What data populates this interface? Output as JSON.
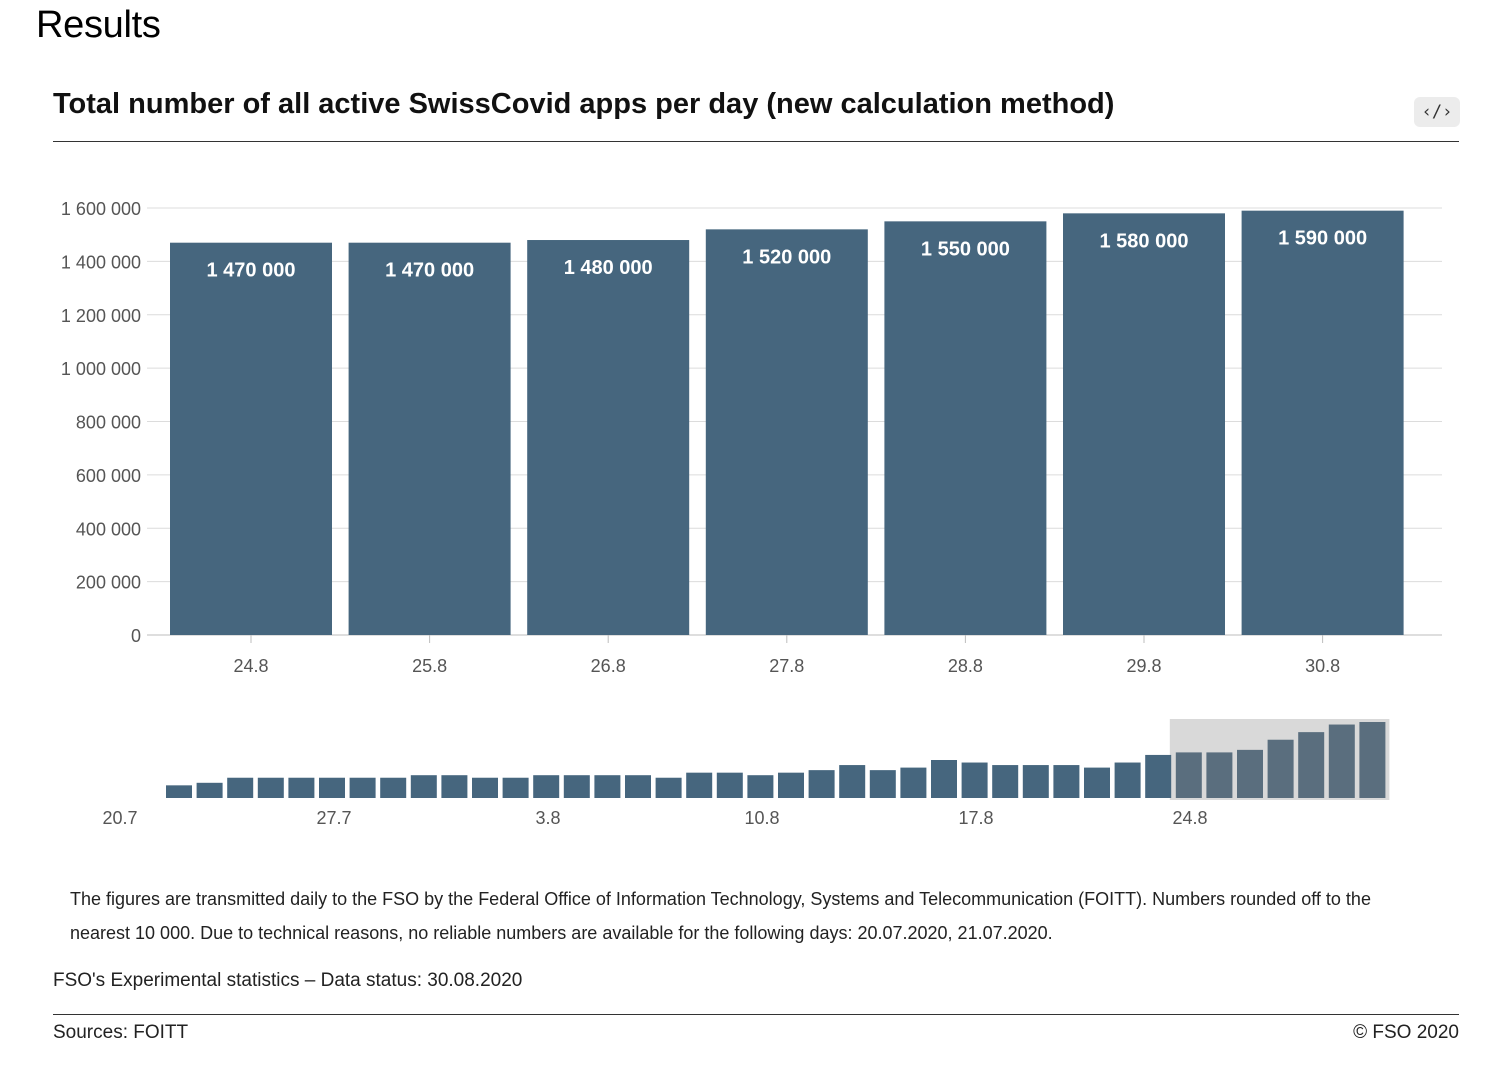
{
  "page": {
    "heading": "Results"
  },
  "chart": {
    "title": "Total number of all active SwissCovid apps per day (new calculation method)",
    "embed_button_label": "‹/›"
  },
  "chart_data": [
    {
      "type": "bar",
      "title": "Total number of all active SwissCovid apps per day (new calculation method)",
      "categories": [
        "24.8",
        "25.8",
        "26.8",
        "27.8",
        "28.8",
        "29.8",
        "30.8"
      ],
      "values": [
        1470000,
        1470000,
        1480000,
        1520000,
        1550000,
        1580000,
        1590000
      ],
      "data_labels": [
        "1 470 000",
        "1 470 000",
        "1 480 000",
        "1 520 000",
        "1 550 000",
        "1 580 000",
        "1 590 000"
      ],
      "y_ticks": [
        0,
        200000,
        400000,
        600000,
        800000,
        1000000,
        1200000,
        1400000,
        1600000
      ],
      "y_tick_labels": [
        "0",
        "200 000",
        "400 000",
        "600 000",
        "800 000",
        "1 000 000",
        "1 200 000",
        "1 400 000",
        "1 600 000"
      ],
      "ylim": [
        0,
        1600000
      ],
      "xlabel": "",
      "ylabel": "",
      "grid": true,
      "bar_color": "#46667e"
    },
    {
      "type": "bar",
      "role": "overview-brush",
      "x_start": "20.7",
      "categories": [
        "22.7",
        "23.7",
        "24.7",
        "25.7",
        "26.7",
        "27.7",
        "28.7",
        "29.7",
        "30.7",
        "31.7",
        "1.8",
        "2.8",
        "3.8",
        "4.8",
        "5.8",
        "6.8",
        "7.8",
        "8.8",
        "9.8",
        "10.8",
        "11.8",
        "12.8",
        "13.8",
        "14.8",
        "15.8",
        "16.8",
        "17.8",
        "18.8",
        "19.8",
        "20.8",
        "21.8",
        "22.8",
        "23.8",
        "24.8",
        "25.8",
        "26.8",
        "27.8",
        "28.8",
        "29.8",
        "30.8"
      ],
      "values": [
        1340000,
        1350000,
        1370000,
        1370000,
        1370000,
        1370000,
        1370000,
        1370000,
        1380000,
        1380000,
        1370000,
        1370000,
        1380000,
        1380000,
        1380000,
        1380000,
        1370000,
        1390000,
        1390000,
        1380000,
        1390000,
        1400000,
        1420000,
        1400000,
        1410000,
        1440000,
        1430000,
        1420000,
        1420000,
        1420000,
        1410000,
        1430000,
        1460000,
        1470000,
        1470000,
        1480000,
        1520000,
        1550000,
        1580000,
        1590000
      ],
      "x_tick_labels": [
        "20.7",
        "27.7",
        "3.8",
        "10.8",
        "17.8",
        "24.8"
      ],
      "selected_range": [
        "24.8",
        "30.8"
      ],
      "bar_color": "#46667e",
      "selected_bar_color": "#5a6e7e",
      "selection_color": "#d9d9d9"
    }
  ],
  "notes": {
    "footnote": "The figures are transmitted daily to the FSO by the Federal Office of Information Technology, Systems and Telecommunication (FOITT). Numbers rounded off to the nearest 10 000. Due to technical reasons, no reliable numbers are available for the following days: 20.07.2020, 21.07.2020.",
    "data_status": "FSO's Experimental statistics – Data status: 30.08.2020"
  },
  "footer": {
    "sources": "Sources: FOITT",
    "copyright": "© FSO 2020"
  }
}
